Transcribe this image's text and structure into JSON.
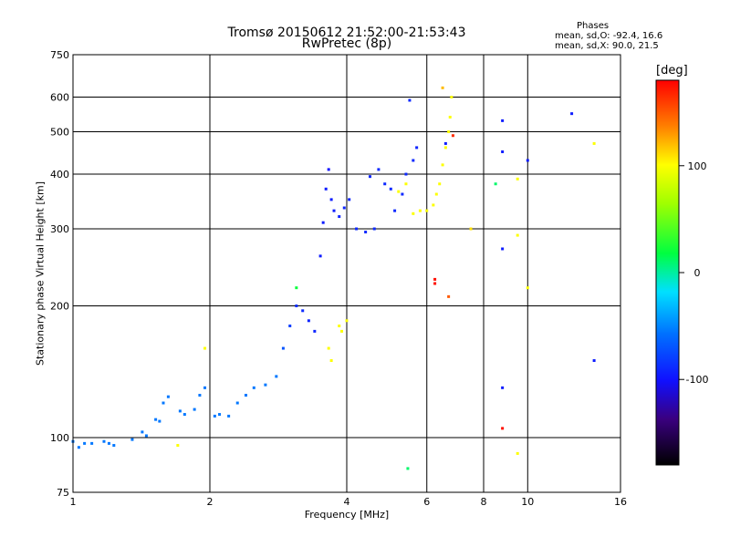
{
  "chart_data": {
    "type": "scatter",
    "title": "Tromsø 20150612 21:52:00-21:53:43",
    "subtitle": "RwPretec (8p)",
    "xlabel": "Frequency [MHz]",
    "ylabel": "Stationary phase Virtual Height [km]",
    "x_scale": "log",
    "y_scale": "log",
    "xlim": [
      1,
      16
    ],
    "ylim": [
      75,
      750
    ],
    "x_ticks": [
      "1",
      "2",
      "4",
      "6",
      "8",
      "10",
      "16"
    ],
    "y_ticks": [
      "75",
      "100",
      "200",
      "300",
      "400",
      "500",
      "600",
      "750"
    ],
    "grid": true,
    "stats": {
      "heading": "Phases",
      "o_line": "mean, sd,O: -92.4, 16.6",
      "x_line": "mean, sd,X:  90.0, 21.5"
    },
    "colorbar": {
      "label": "[deg]",
      "range": [
        -180,
        180
      ],
      "ticks": [
        "100",
        "0",
        "-100"
      ]
    },
    "series": [
      {
        "points": [
          [
            1.0,
            98,
            -55
          ],
          [
            1.03,
            95,
            -55
          ],
          [
            1.06,
            97,
            -55
          ],
          [
            1.1,
            97,
            -55
          ],
          [
            1.17,
            98,
            -55
          ],
          [
            1.2,
            97,
            -55
          ],
          [
            1.23,
            96,
            -55
          ],
          [
            1.35,
            99,
            -55
          ],
          [
            1.42,
            103,
            -55
          ],
          [
            1.45,
            101,
            -55
          ],
          [
            1.52,
            110,
            -55
          ],
          [
            1.55,
            109,
            -55
          ],
          [
            1.58,
            120,
            -55
          ],
          [
            1.62,
            124,
            -55
          ],
          [
            1.72,
            115,
            -55
          ],
          [
            1.76,
            113,
            -55
          ],
          [
            1.85,
            116,
            -55
          ],
          [
            1.9,
            125,
            -55
          ],
          [
            1.95,
            130,
            -55
          ],
          [
            2.05,
            112,
            -55
          ],
          [
            2.1,
            113,
            -55
          ],
          [
            2.2,
            112,
            -55
          ],
          [
            2.3,
            120,
            -55
          ],
          [
            2.4,
            125,
            -55
          ],
          [
            2.5,
            130,
            -55
          ],
          [
            2.65,
            132,
            -55
          ],
          [
            2.8,
            138,
            -55
          ],
          [
            2.9,
            160,
            -70
          ],
          [
            3.0,
            180,
            -80
          ],
          [
            3.1,
            200,
            -88
          ],
          [
            3.2,
            195,
            -90
          ],
          [
            3.3,
            185,
            -92
          ],
          [
            3.4,
            175,
            -92
          ],
          [
            3.5,
            260,
            -95
          ],
          [
            3.55,
            310,
            -95
          ],
          [
            3.6,
            370,
            -95
          ],
          [
            3.65,
            410,
            -100
          ],
          [
            3.7,
            350,
            -95
          ],
          [
            3.75,
            330,
            -95
          ],
          [
            3.85,
            320,
            -92
          ],
          [
            3.95,
            335,
            -92
          ],
          [
            4.05,
            350,
            -92
          ],
          [
            4.2,
            300,
            -90
          ],
          [
            4.4,
            295,
            -90
          ],
          [
            4.6,
            300,
            -90
          ],
          [
            4.85,
            380,
            -90
          ],
          [
            5.1,
            330,
            -90
          ],
          [
            5.4,
            400,
            -90
          ],
          [
            5.6,
            430,
            -90
          ],
          [
            5.7,
            460,
            -92
          ],
          [
            4.5,
            395,
            -90
          ],
          [
            4.7,
            410,
            -90
          ],
          [
            5.0,
            370,
            -90
          ],
          [
            5.3,
            360,
            -90
          ],
          [
            5.5,
            590,
            -90
          ],
          [
            8.8,
            530,
            -95
          ],
          [
            8.8,
            450,
            -95
          ],
          [
            8.8,
            270,
            -95
          ],
          [
            8.8,
            130,
            -95
          ],
          [
            10.0,
            430,
            -95
          ],
          [
            12.5,
            550,
            -95
          ],
          [
            14.0,
            150,
            -95
          ],
          [
            6.6,
            470,
            -95
          ]
        ]
      },
      {
        "points": [
          [
            1.7,
            96,
            100
          ],
          [
            1.95,
            160,
            100
          ],
          [
            3.65,
            160,
            100
          ],
          [
            3.7,
            150,
            100
          ],
          [
            3.85,
            180,
            100
          ],
          [
            4.0,
            185,
            100
          ],
          [
            3.9,
            175,
            100
          ],
          [
            5.6,
            325,
            100
          ],
          [
            5.8,
            330,
            100
          ],
          [
            6.0,
            330,
            100
          ],
          [
            6.2,
            340,
            100
          ],
          [
            6.3,
            360,
            100
          ],
          [
            6.4,
            380,
            100
          ],
          [
            6.5,
            420,
            100
          ],
          [
            6.6,
            460,
            100
          ],
          [
            6.7,
            500,
            100
          ],
          [
            6.75,
            540,
            100
          ],
          [
            6.8,
            600,
            100
          ],
          [
            5.2,
            365,
            100
          ],
          [
            5.4,
            380,
            100
          ],
          [
            9.5,
            390,
            100
          ],
          [
            9.5,
            290,
            100
          ],
          [
            9.5,
            92,
            100
          ],
          [
            10.0,
            220,
            100
          ],
          [
            14.0,
            470,
            100
          ],
          [
            6.5,
            630,
            120
          ],
          [
            6.85,
            490,
            165
          ],
          [
            6.25,
            230,
            175
          ],
          [
            6.25,
            225,
            175
          ],
          [
            6.7,
            210,
            150
          ],
          [
            8.8,
            105,
            175
          ],
          [
            3.1,
            220,
            20
          ],
          [
            5.45,
            85,
            10
          ],
          [
            8.5,
            380,
            10
          ],
          [
            7.5,
            300,
            110
          ]
        ]
      }
    ]
  }
}
